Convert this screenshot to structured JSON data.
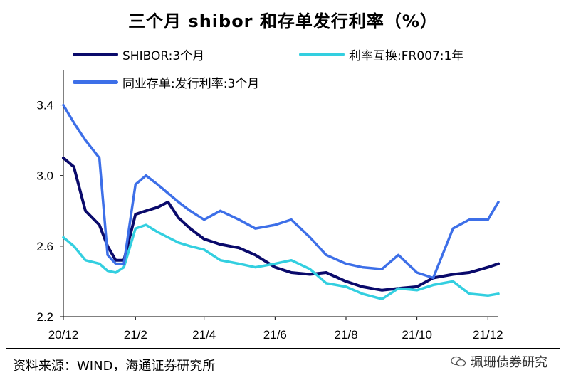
{
  "title": "三个月 shibor 和存单发行利率（%）",
  "source": "资料来源：WIND，海通证券研究所",
  "watermark": "珮珊债券研究",
  "colors": {
    "shibor": "#0a0a6b",
    "repo": "#33cfe0",
    "ncd": "#3d6fe8",
    "axis": "#000000"
  },
  "chart_data": {
    "type": "line",
    "title": "三个月 shibor 和存单发行利率（%）",
    "xlabel": "",
    "ylabel": "",
    "x_tick_labels": [
      "20/12",
      "21/2",
      "21/4",
      "21/6",
      "21/8",
      "21/10",
      "21/12"
    ],
    "y_tick_labels": [
      "2.2",
      "2.6",
      "3.0",
      "3.4"
    ],
    "ylim": [
      2.2,
      3.6
    ],
    "legend_placement": "top",
    "x": [
      "2020-12-01",
      "2020-12-10",
      "2020-12-20",
      "2021-01-01",
      "2021-01-08",
      "2021-01-15",
      "2021-01-22",
      "2021-02-01",
      "2021-02-10",
      "2021-02-20",
      "2021-03-01",
      "2021-03-10",
      "2021-03-20",
      "2021-04-01",
      "2021-04-15",
      "2021-05-01",
      "2021-05-15",
      "2021-06-01",
      "2021-06-15",
      "2021-07-01",
      "2021-07-15",
      "2021-08-01",
      "2021-08-15",
      "2021-09-01",
      "2021-09-15",
      "2021-10-01",
      "2021-10-15",
      "2021-11-01",
      "2021-11-15",
      "2021-12-01",
      "2021-12-10"
    ],
    "series": [
      {
        "name": "SHIBOR:3个月",
        "values": [
          3.1,
          3.05,
          2.8,
          2.72,
          2.6,
          2.52,
          2.52,
          2.78,
          2.8,
          2.82,
          2.85,
          2.76,
          2.7,
          2.64,
          2.61,
          2.59,
          2.55,
          2.48,
          2.45,
          2.44,
          2.45,
          2.4,
          2.37,
          2.35,
          2.36,
          2.37,
          2.42,
          2.44,
          2.45,
          2.48,
          2.5
        ]
      },
      {
        "name": "利率互换:FR007:1年",
        "values": [
          2.65,
          2.6,
          2.52,
          2.5,
          2.46,
          2.45,
          2.48,
          2.7,
          2.72,
          2.68,
          2.65,
          2.62,
          2.6,
          2.58,
          2.52,
          2.5,
          2.48,
          2.5,
          2.52,
          2.47,
          2.39,
          2.37,
          2.33,
          2.3,
          2.36,
          2.35,
          2.38,
          2.4,
          2.33,
          2.32,
          2.33
        ]
      },
      {
        "name": "同业存单:发行利率:3个月",
        "values": [
          3.4,
          3.3,
          3.2,
          3.1,
          2.55,
          2.5,
          2.5,
          2.95,
          3.0,
          2.95,
          2.9,
          2.85,
          2.8,
          2.75,
          2.8,
          2.75,
          2.7,
          2.72,
          2.75,
          2.65,
          2.55,
          2.5,
          2.48,
          2.47,
          2.55,
          2.45,
          2.42,
          2.7,
          2.75,
          2.75,
          2.85
        ]
      }
    ]
  },
  "legend": {
    "shibor": "SHIBOR:3个月",
    "repo": "利率互换:FR007:1年",
    "ncd": "同业存单:发行利率:3个月"
  }
}
